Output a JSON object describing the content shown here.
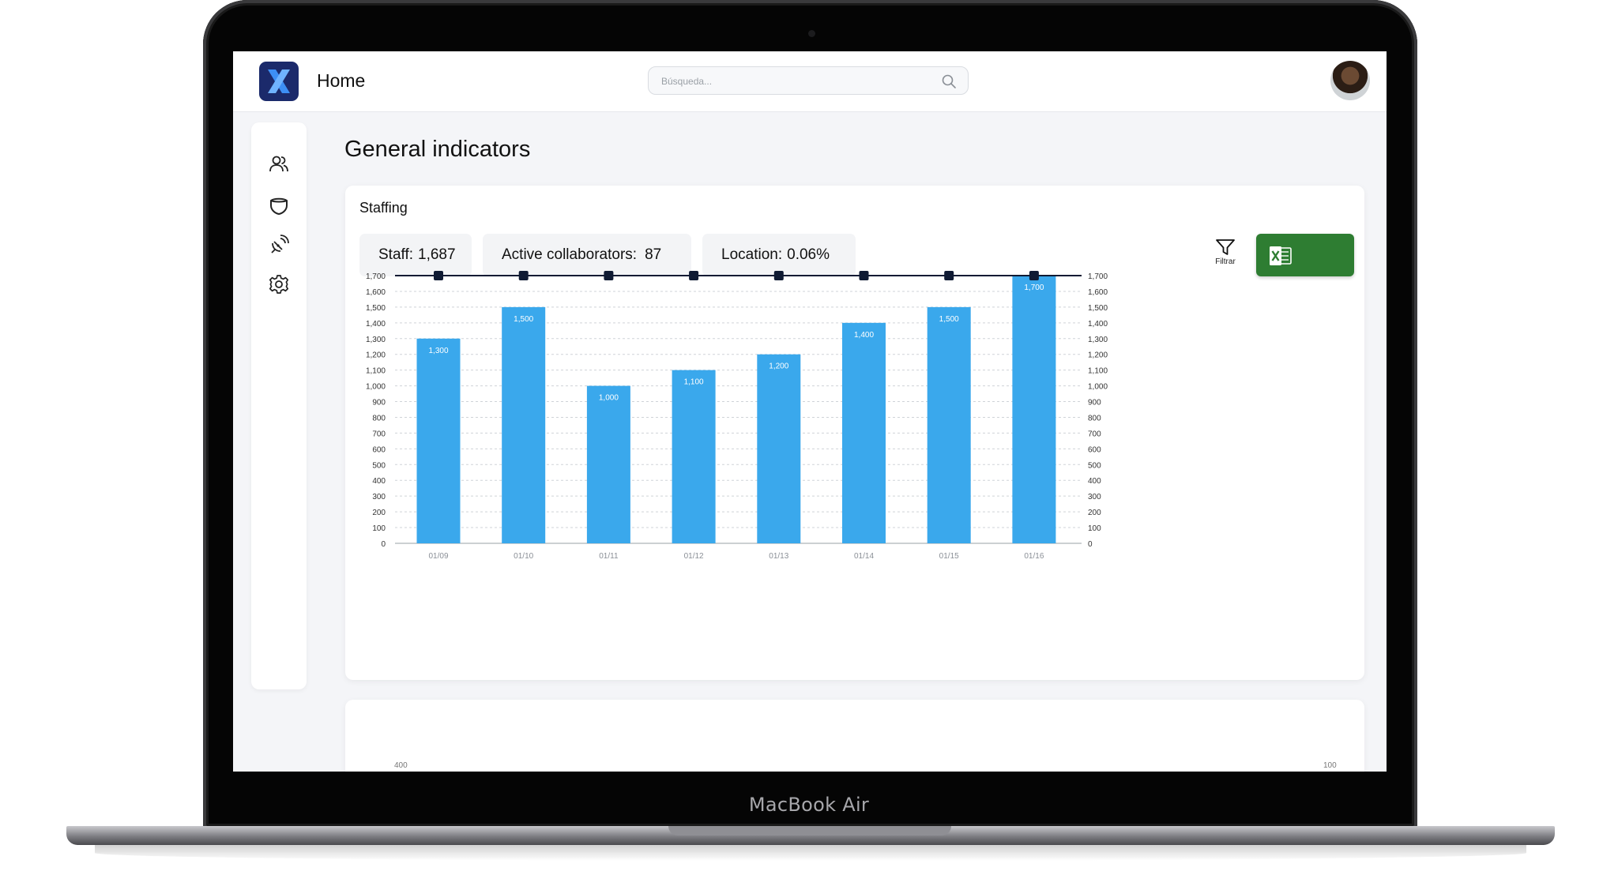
{
  "device_label": "MacBook Air",
  "header": {
    "title": "Home",
    "search_placeholder": "Búsqueda..."
  },
  "sidebar": {
    "items": [
      {
        "icon": "users-icon"
      },
      {
        "icon": "shield-icon"
      },
      {
        "icon": "satellite-icon"
      },
      {
        "icon": "gear-icon"
      }
    ]
  },
  "page": {
    "title": "General indicators"
  },
  "staffing": {
    "title": "Staffing",
    "stats": [
      {
        "label": "Staff:",
        "value": "1,687"
      },
      {
        "label": "Active collaborators:",
        "value": "87"
      },
      {
        "label": "Location:",
        "value": "0.06%"
      }
    ],
    "filter_label": "Filtrar",
    "export_icon": "excel-icon",
    "colors": {
      "bar": "#3aa8ec",
      "line": "#0f1a33",
      "export": "#2e7d32"
    }
  },
  "second_card": {
    "left_tick": "400",
    "right_tick": "100"
  },
  "chart_data": {
    "type": "bar",
    "categories": [
      "01/09",
      "01/10",
      "01/11",
      "01/12",
      "01/13",
      "01/14",
      "01/15",
      "01/16"
    ],
    "values": [
      1300,
      1500,
      1000,
      1100,
      1200,
      1400,
      1500,
      1700
    ],
    "data_labels": [
      "1,300",
      "1,500",
      "1,000",
      "1,100",
      "1,200",
      "1,400",
      "1,500",
      "1,700"
    ],
    "line_series": {
      "values": [
        1700,
        1700,
        1700,
        1700,
        1700,
        1700,
        1700,
        1700
      ]
    },
    "ylim": [
      0,
      1700
    ],
    "yticks": [
      "0",
      "100",
      "200",
      "300",
      "400",
      "500",
      "600",
      "700",
      "800",
      "900",
      "1,000",
      "1,100",
      "1,200",
      "1,300",
      "1,400",
      "1,500",
      "1,600",
      "1,700"
    ],
    "secondary_ylim": [
      0,
      1700
    ],
    "grid": true
  }
}
